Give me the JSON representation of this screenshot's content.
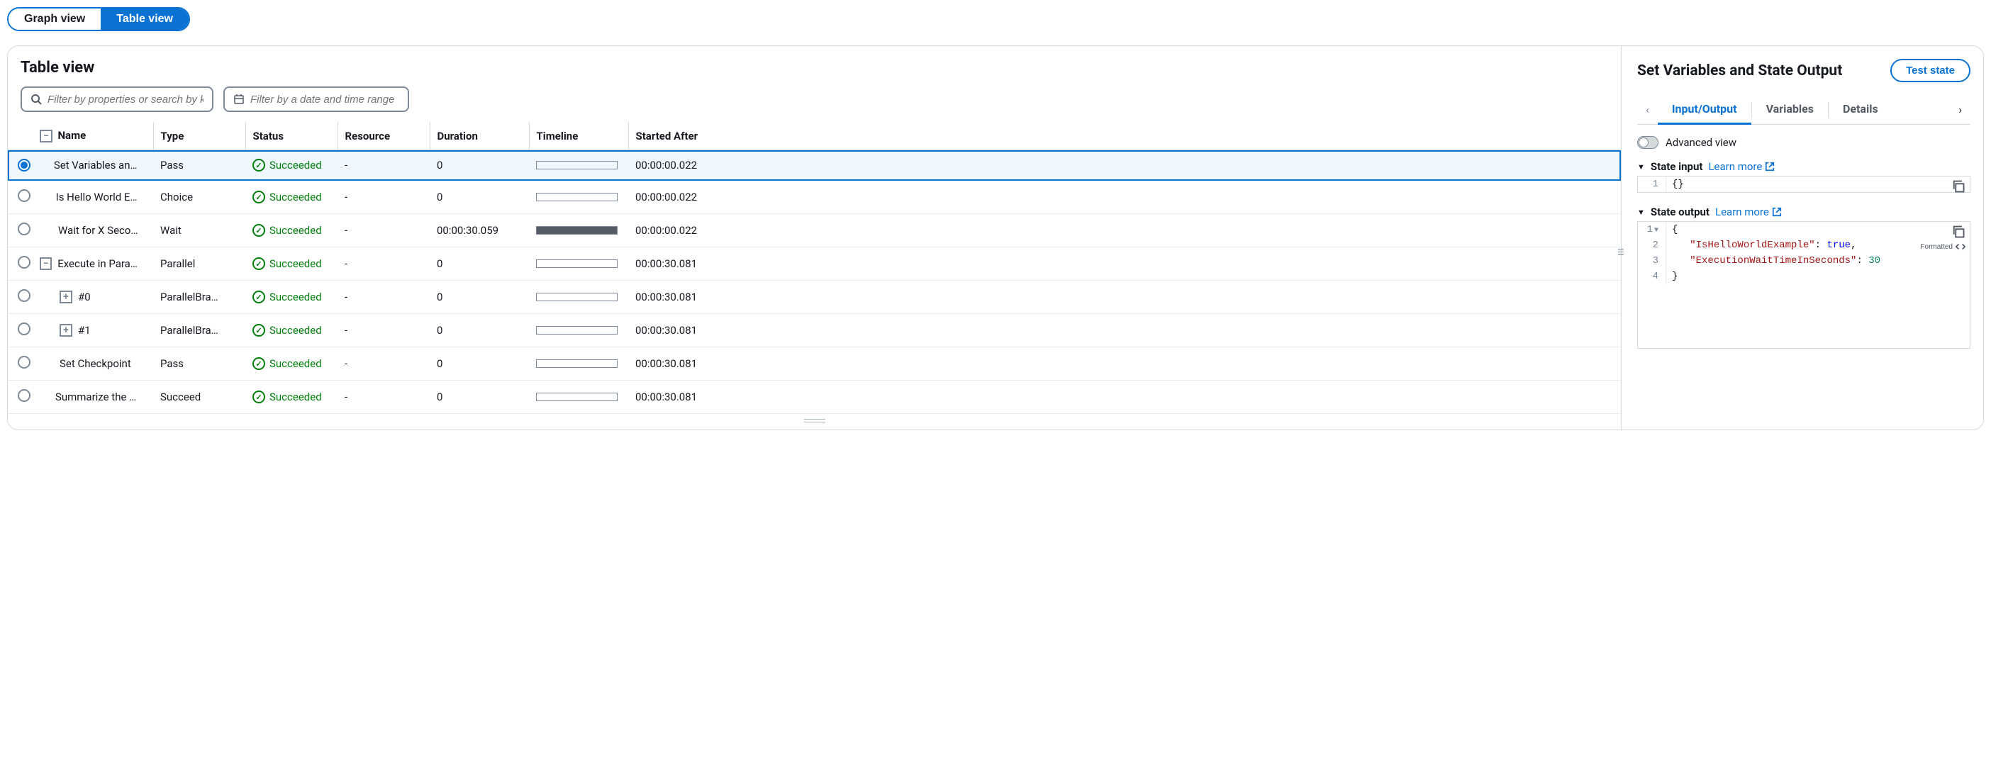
{
  "view_toggle": {
    "graph": "Graph view",
    "table": "Table view",
    "active": "table"
  },
  "left": {
    "title": "Table view",
    "filter_search_placeholder": "Filter by properties or search by keyword",
    "filter_date_placeholder": "Filter by a date and time range",
    "columns": [
      "Name",
      "Type",
      "Status",
      "Resource",
      "Duration",
      "Timeline",
      "Started After"
    ],
    "rows": [
      {
        "selected": true,
        "expand": null,
        "indent": 0,
        "name": "Set Variables and State Output",
        "type": "Pass",
        "status": "Succeeded",
        "resource": "-",
        "duration": "0",
        "timeline_start": 0,
        "timeline_width": 2,
        "timeline_fill": false,
        "started_after": "00:00:00.022"
      },
      {
        "selected": false,
        "expand": null,
        "indent": 0,
        "name": "Is Hello World Example?",
        "type": "Choice",
        "status": "Succeeded",
        "resource": "-",
        "duration": "0",
        "timeline_start": 0,
        "timeline_width": 2,
        "timeline_fill": false,
        "started_after": "00:00:00.022"
      },
      {
        "selected": false,
        "expand": null,
        "indent": 0,
        "name": "Wait for X Seconds",
        "type": "Wait",
        "status": "Succeeded",
        "resource": "-",
        "duration": "00:00:30.059",
        "timeline_start": 0,
        "timeline_width": 100,
        "timeline_fill": true,
        "started_after": "00:00:00.022"
      },
      {
        "selected": false,
        "expand": "minus",
        "indent": 0,
        "name": "Execute in Parallel",
        "type": "Parallel",
        "status": "Succeeded",
        "resource": "-",
        "duration": "0",
        "timeline_start": 98,
        "timeline_width": 2,
        "timeline_fill": false,
        "started_after": "00:00:30.081"
      },
      {
        "selected": false,
        "expand": "plus",
        "indent": 1,
        "name": "#0",
        "type": "ParallelBra…",
        "status": "Succeeded",
        "resource": "-",
        "duration": "0",
        "timeline_start": 98,
        "timeline_width": 2,
        "timeline_fill": false,
        "started_after": "00:00:30.081"
      },
      {
        "selected": false,
        "expand": "plus",
        "indent": 1,
        "name": "#1",
        "type": "ParallelBra…",
        "status": "Succeeded",
        "resource": "-",
        "duration": "0",
        "timeline_start": 98,
        "timeline_width": 2,
        "timeline_fill": false,
        "started_after": "00:00:30.081"
      },
      {
        "selected": false,
        "expand": null,
        "indent": 0,
        "name": "Set Checkpoint",
        "type": "Pass",
        "status": "Succeeded",
        "resource": "-",
        "duration": "0",
        "timeline_start": 98,
        "timeline_width": 2,
        "timeline_fill": false,
        "started_after": "00:00:30.081"
      },
      {
        "selected": false,
        "expand": null,
        "indent": 0,
        "name": "Summarize the Execution",
        "type": "Succeed",
        "status": "Succeeded",
        "resource": "-",
        "duration": "0",
        "timeline_start": 98,
        "timeline_width": 2,
        "timeline_fill": false,
        "started_after": "00:00:30.081"
      }
    ]
  },
  "right": {
    "title": "Set Variables and State Output",
    "test_btn": "Test state",
    "tabs": [
      "Input/Output",
      "Variables",
      "Details"
    ],
    "active_tab": 0,
    "advanced_view": "Advanced view",
    "state_input": {
      "label": "State input",
      "learn_more": "Learn more",
      "lines": [
        {
          "n": "1",
          "content": "{}"
        }
      ]
    },
    "state_output": {
      "label": "State output",
      "learn_more": "Learn more",
      "formatted_label": "Formatted",
      "json": {
        "IsHelloWorldExample": true,
        "ExecutionWaitTimeInSeconds": 30
      }
    }
  },
  "colors": {
    "primary": "#0972d3",
    "success": "#037f0c",
    "border": "#d5dbdb",
    "text": "#16191f"
  }
}
